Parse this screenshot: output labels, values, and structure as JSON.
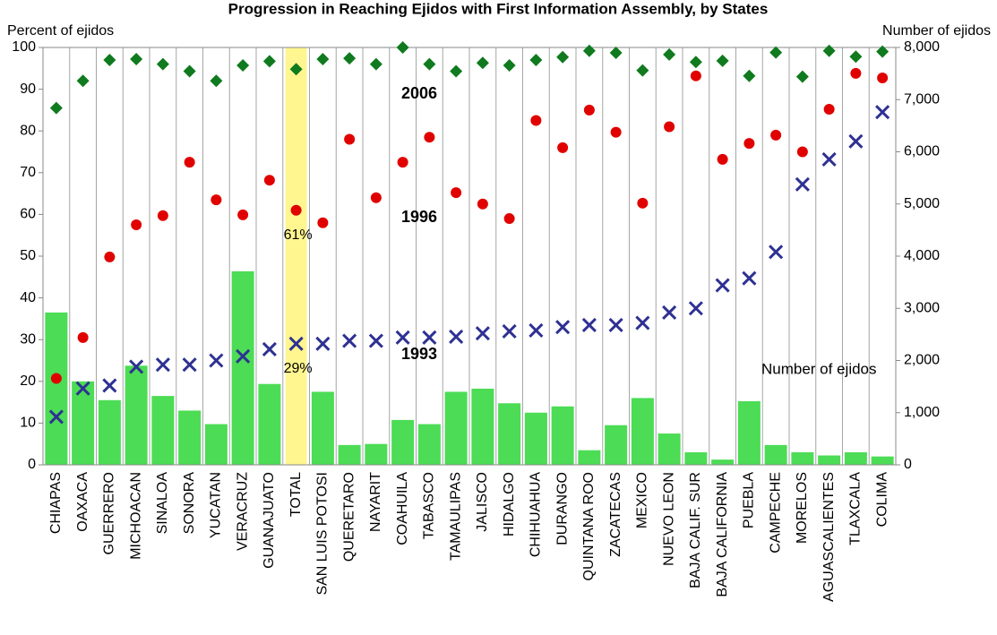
{
  "chart_data": {
    "type": "bar-scatter",
    "title": "Progression in Reaching Ejidos with First Information Assembly, by States",
    "y_label": "Percent of ejidos",
    "y2_label": "Number of ejidos",
    "categories": [
      "CHIAPAS",
      "OAXACA",
      "GUERRERO",
      "MICHOACAN",
      "SINALOA",
      "SONORA",
      "YUCATAN",
      "VERACRUZ",
      "GUANAJUATO",
      "TOTAL",
      "SAN LUIS POTOSI",
      "QUERETARO",
      "NAYARIT",
      "COAHUILA",
      "TABASCO",
      "TAMAULIPAS",
      "JALISCO",
      "HIDALGO",
      "CHIHUAHUA",
      "DURANGO",
      "QUINTANA ROO",
      "ZACATECAS",
      "MEXICO",
      "NUEVO LEON",
      "BAJA CALIF. SUR",
      "BAJA CALIFORNIA",
      "PUEBLA",
      "CAMPECHE",
      "MORELOS",
      "AGUASCALIENTES",
      "TLAXCALA",
      "COLIMA"
    ],
    "highlight": "TOTAL",
    "highlight_color": "#fff68f",
    "grid": "x",
    "ylim": [
      0,
      100
    ],
    "yticks": [
      0,
      10,
      20,
      30,
      40,
      50,
      60,
      70,
      80,
      90,
      100
    ],
    "y2lim": [
      0,
      8000
    ],
    "y2ticks": [
      0,
      {
        "value": 1000,
        "label": "1,000"
      },
      {
        "value": 2000,
        "label": "2,000"
      },
      {
        "value": 3000,
        "label": "3,000"
      },
      {
        "value": 4000,
        "label": "4,000"
      },
      {
        "value": 5000,
        "label": "5,000"
      },
      {
        "value": 6000,
        "label": "6,000"
      },
      {
        "value": 7000,
        "label": "7,000"
      },
      {
        "value": 8000,
        "label": "8,000"
      }
    ],
    "series": [
      {
        "name": "Number of ejidos",
        "kind": "bar",
        "axis": "y2",
        "color": "#4cdc55",
        "label_color": "#000000",
        "values": [
          2920,
          1600,
          1240,
          1900,
          1320,
          1040,
          780,
          3710,
          1550,
          null,
          1400,
          380,
          400,
          860,
          780,
          1400,
          1460,
          1180,
          1000,
          1120,
          280,
          760,
          1280,
          600,
          240,
          100,
          1220,
          380,
          240,
          180,
          240,
          160
        ]
      },
      {
        "name": "1993",
        "kind": "x",
        "color": "#2e3192",
        "label_color": "#1a1a8c",
        "values": [
          11.5,
          18.3,
          19,
          23.5,
          24,
          24,
          25,
          26,
          27.7,
          29,
          29,
          29.7,
          29.7,
          30.5,
          30.5,
          30.7,
          31.5,
          32,
          32.2,
          33,
          33.5,
          33.5,
          34,
          36.5,
          37.5,
          43,
          44.7,
          51,
          67.2,
          73.2,
          77.5,
          84.5
        ],
        "value_labels": [
          null,
          null,
          null,
          null,
          null,
          null,
          null,
          null,
          null,
          "29%",
          null,
          null,
          null,
          null,
          null,
          null,
          null,
          null,
          null,
          null,
          null,
          null,
          null,
          null,
          null,
          null,
          null,
          null,
          null,
          null,
          null,
          null
        ]
      },
      {
        "name": "1996",
        "kind": "circle",
        "color": "#e00000",
        "label_color": "#e02020",
        "values": [
          20.7,
          30.5,
          49.8,
          57.5,
          59.7,
          72.5,
          63.5,
          59.9,
          68.2,
          61,
          58,
          78,
          64,
          72.5,
          78.5,
          65.2,
          62.5,
          59,
          82.5,
          76,
          85,
          79.7,
          62.7,
          81,
          93.2,
          73.2,
          77,
          79,
          75,
          85.2,
          93.8,
          92.7
        ],
        "value_labels": [
          null,
          null,
          null,
          null,
          null,
          null,
          null,
          null,
          null,
          "61%",
          null,
          null,
          null,
          null,
          null,
          null,
          null,
          null,
          null,
          null,
          null,
          null,
          null,
          null,
          null,
          null,
          null,
          null,
          null,
          null,
          null,
          null
        ]
      },
      {
        "name": "2006",
        "kind": "diamond",
        "color": "#0f7a1e",
        "label_color": "#1a7a1a",
        "values": [
          85.5,
          92,
          97,
          97.2,
          96,
          94.3,
          92,
          95.7,
          96.7,
          94.8,
          97.2,
          97.4,
          96,
          100,
          96,
          94.3,
          96.3,
          95.7,
          97,
          97.7,
          99.2,
          98.7,
          94.5,
          98.3,
          96.5,
          96.8,
          93.2,
          98.8,
          93,
          99.2,
          97.8,
          99
        ]
      }
    ]
  }
}
